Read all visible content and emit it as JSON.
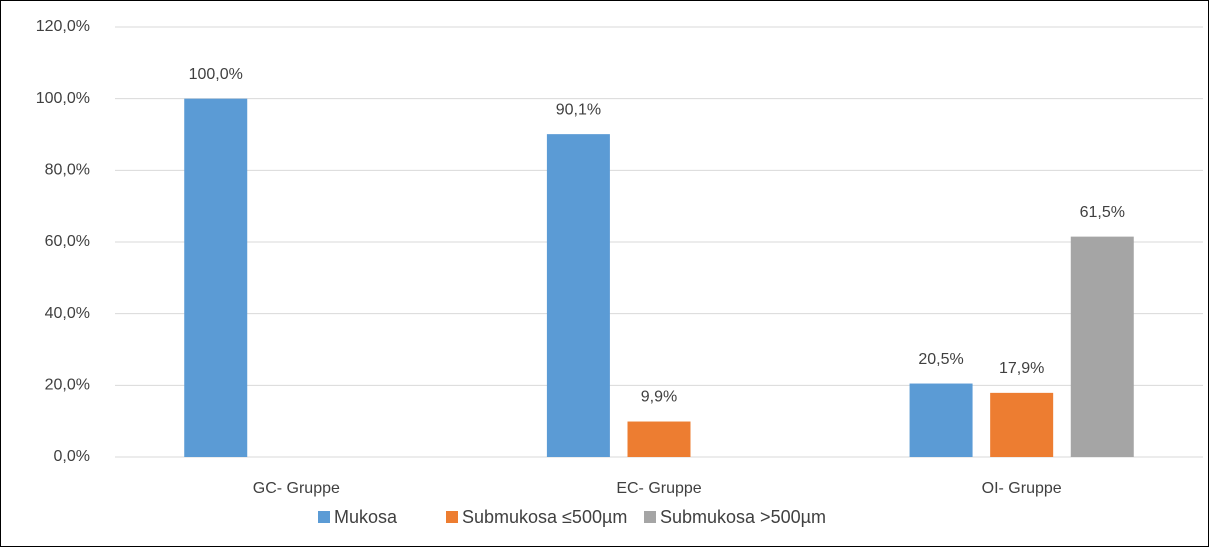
{
  "chart_data": {
    "type": "bar",
    "categories": [
      "GC- Gruppe",
      "EC- Gruppe",
      "OI- Gruppe"
    ],
    "series": [
      {
        "name": "Mukosa",
        "color": "#5b9bd5",
        "values": [
          100,
          90.1,
          20.5
        ],
        "value_labels": [
          "100,0%",
          "90,1%",
          "20,5%"
        ]
      },
      {
        "name": "Submukosa ≤500µm",
        "color": "#ed7d31",
        "values": [
          null,
          9.9,
          17.9
        ],
        "value_labels": [
          null,
          "9,9%",
          "17,9%"
        ]
      },
      {
        "name": "Submukosa >500µm",
        "color": "#a5a5a5",
        "values": [
          null,
          null,
          61.5
        ],
        "value_labels": [
          null,
          null,
          "61,5%"
        ]
      }
    ],
    "ylim": [
      0,
      120
    ],
    "yticks": [
      {
        "value": 0,
        "label": "0,0%"
      },
      {
        "value": 20,
        "label": "20,0%"
      },
      {
        "value": 40,
        "label": "40,0%"
      },
      {
        "value": 60,
        "label": "60,0%"
      },
      {
        "value": 80,
        "label": "80,0%"
      },
      {
        "value": 100,
        "label": "100,0%"
      },
      {
        "value": 120,
        "label": "120,0%"
      }
    ],
    "grid": true,
    "legend": "bottom"
  }
}
